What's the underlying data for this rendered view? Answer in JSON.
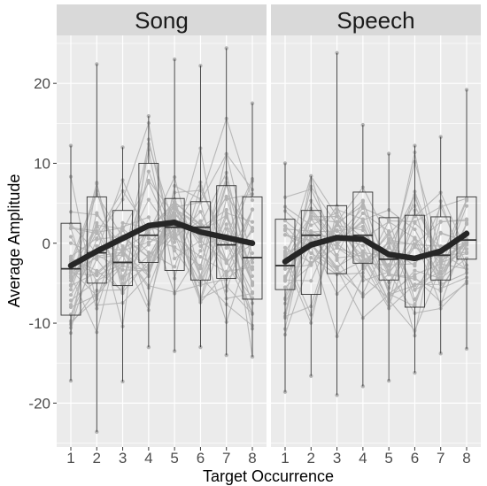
{
  "chart_data": {
    "type": "box",
    "xlabel": "Target Occurrence",
    "ylabel": "Average Amplitude",
    "ylim": [
      -25.5,
      26
    ],
    "yticks": [
      -20,
      -10,
      0,
      10,
      20
    ],
    "x": [
      1,
      2,
      3,
      4,
      5,
      6,
      7,
      8
    ],
    "grid": true,
    "colors": {
      "panel_bg": "#ebebeb",
      "strip_bg": "#d9d9d9",
      "grid": "#ffffff",
      "lines": "#b3b3b3",
      "mean": "#262626",
      "box": "#333333"
    },
    "panels": [
      {
        "name": "Song",
        "mean": [
          -2.8,
          -1.0,
          0.6,
          2.2,
          2.6,
          1.4,
          0.7,
          0.0
        ],
        "box": {
          "q1": [
            -9.0,
            -5.0,
            -5.3,
            -2.4,
            -3.4,
            -4.6,
            -4.4,
            -7.0
          ],
          "median": [
            -3.2,
            -1.2,
            -2.4,
            1.0,
            2.0,
            2.0,
            -0.2,
            -1.8
          ],
          "q3": [
            2.5,
            5.8,
            4.1,
            10.0,
            5.6,
            5.2,
            7.2,
            5.8
          ],
          "min": [
            -17.2,
            -23.6,
            -17.3,
            -13.0,
            -13.5,
            -13.0,
            -14.0,
            -14.2
          ],
          "max": [
            12.2,
            22.4,
            12.0,
            15.9,
            23.0,
            22.2,
            24.4,
            17.5
          ]
        }
      },
      {
        "name": "Speech",
        "mean": [
          -2.3,
          -0.2,
          0.7,
          0.5,
          -1.4,
          -1.9,
          -1.0,
          1.2
        ],
        "box": {
          "q1": [
            -5.8,
            -6.4,
            -3.8,
            -2.5,
            -4.6,
            -8.0,
            -4.6,
            -2.0
          ],
          "median": [
            -2.8,
            1.0,
            0.5,
            1.0,
            -2.0,
            -1.8,
            -1.5,
            0.4
          ],
          "q3": [
            3.0,
            4.1,
            4.7,
            6.4,
            3.2,
            3.5,
            3.3,
            5.8
          ],
          "min": [
            -18.6,
            -16.6,
            -19.0,
            -17.9,
            -17.2,
            -16.2,
            -13.8,
            -13.2
          ],
          "max": [
            10.0,
            8.4,
            23.8,
            14.8,
            11.2,
            12.2,
            13.3,
            19.2
          ]
        }
      }
    ]
  }
}
